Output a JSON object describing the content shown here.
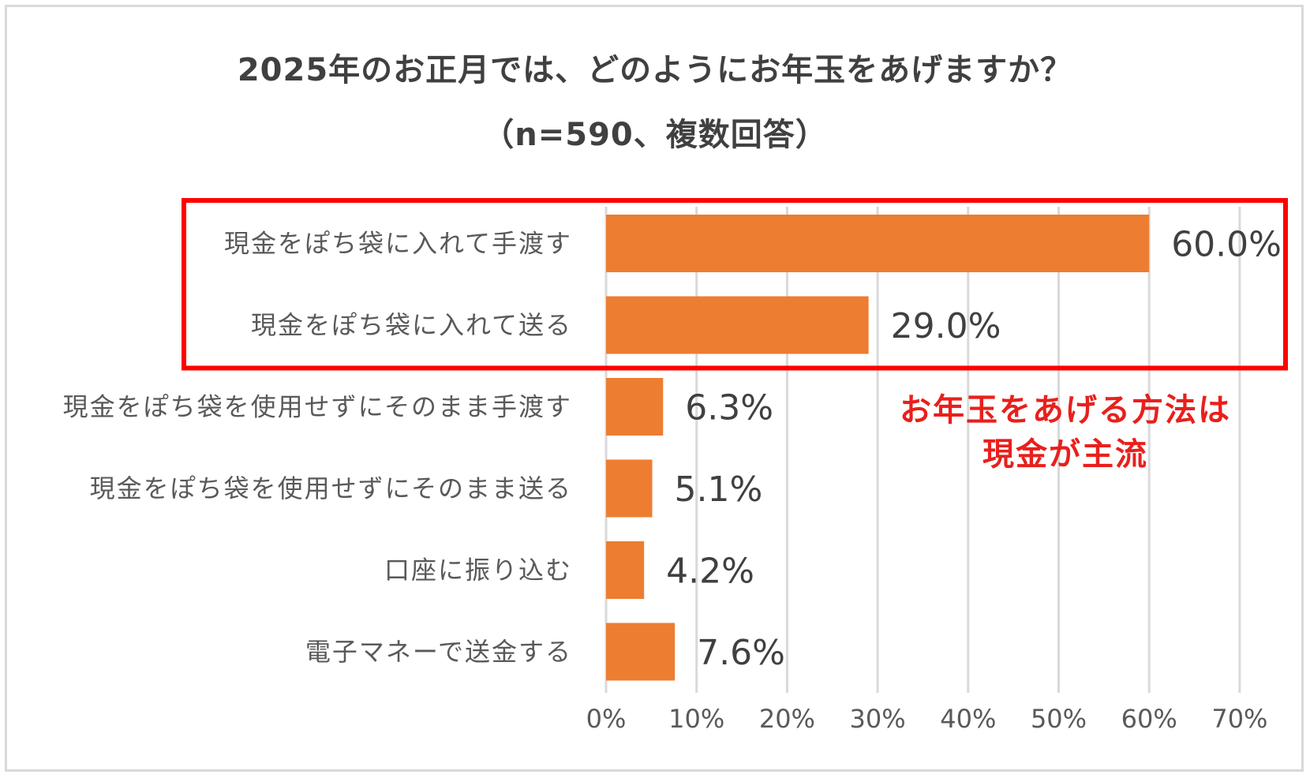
{
  "chart_data": {
    "type": "bar",
    "orientation": "horizontal",
    "title": "2025年のお正月では、どのようにお年玉をあげますか？",
    "subtitle": "（n=590、複数回答）",
    "categories": [
      "現金をぽち袋に入れて手渡す",
      "現金をぽち袋に入れて送る",
      "現金をぽち袋を使用せずにそのまま手渡す",
      "現金をぽち袋を使用せずにそのまま送る",
      "口座に振り込む",
      "電子マネーで送金する"
    ],
    "values": [
      60.0,
      29.0,
      6.3,
      5.1,
      4.2,
      7.6
    ],
    "data_labels": [
      "60.0%",
      "29.0%",
      "6.3%",
      "5.1%",
      "4.2%",
      "7.6%"
    ],
    "xlim": [
      0,
      70
    ],
    "xticks": [
      0,
      10,
      20,
      30,
      40,
      50,
      60,
      70
    ],
    "xtick_labels": [
      "0%",
      "10%",
      "20%",
      "30%",
      "40%",
      "50%",
      "60%",
      "70%"
    ],
    "grid": true,
    "bar_color": "#ed7d31",
    "highlight": {
      "categories_highlighted": [
        0,
        1
      ],
      "color": "#ff0000"
    },
    "annotation": {
      "line1": "お年玉をあげる方法は",
      "line2": "現金が主流",
      "color": "#e8201c"
    }
  }
}
